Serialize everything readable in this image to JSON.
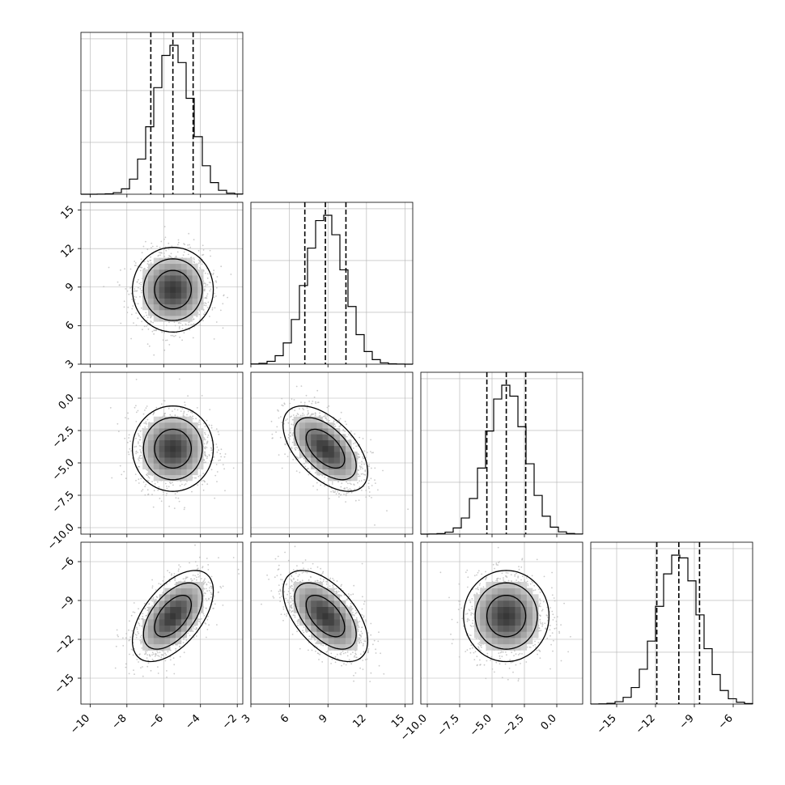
{
  "chart_data": {
    "type": "corner",
    "parameters": [
      {
        "x_ticks": [
          "−10",
          "−8",
          "−6",
          "−4",
          "−2"
        ],
        "x_tick_values": [
          -10,
          -8,
          -6,
          -4,
          -2
        ],
        "range": [
          -10.5,
          -1.7
        ],
        "mean": -5.5,
        "sd": 1.0,
        "quantiles": [
          -6.7,
          -5.5,
          -4.4
        ]
      },
      {
        "x_ticks": [
          "3",
          "6",
          "9",
          "12",
          "15"
        ],
        "x_tick_values": [
          3,
          6,
          9,
          12,
          15
        ],
        "y_ticks": [
          "3",
          "6",
          "9",
          "12",
          "15"
        ],
        "y_tick_values": [
          3,
          6,
          9,
          12,
          15
        ],
        "range": [
          3.0,
          15.6
        ],
        "mean": 8.8,
        "sd": 1.5,
        "quantiles": [
          7.2,
          8.8,
          10.4
        ]
      },
      {
        "x_ticks": [
          "−10.0",
          "−7.5",
          "−5.0",
          "−2.5",
          "0.0"
        ],
        "x_tick_values": [
          -10,
          -7.5,
          -5,
          -2.5,
          0
        ],
        "y_ticks": [
          "−10.0",
          "−7.5",
          "−5.0",
          "−2.5",
          "0.0"
        ],
        "y_tick_values": [
          -10,
          -7.5,
          -5,
          -2.5,
          0
        ],
        "range": [
          -10.5,
          2.0
        ],
        "mean": -3.9,
        "sd": 1.5,
        "quantiles": [
          -5.4,
          -3.9,
          -2.4
        ]
      },
      {
        "x_ticks": [
          "−15",
          "−12",
          "−9",
          "−6"
        ],
        "x_tick_values": [
          -15,
          -12,
          -9,
          -6
        ],
        "y_ticks": [
          "−15",
          "−12",
          "−9",
          "−6"
        ],
        "y_tick_values": [
          -15,
          -12,
          -9,
          -6
        ],
        "range": [
          -17.0,
          -4.5
        ],
        "mean": -10.2,
        "sd": 1.6,
        "quantiles": [
          -11.9,
          -10.2,
          -8.6
        ]
      }
    ],
    "correlations": [
      [
        1.0,
        0.0,
        0.0,
        0.55
      ],
      [
        0.0,
        1.0,
        -0.55,
        -0.55
      ],
      [
        0.0,
        -0.55,
        1.0,
        0.0
      ],
      [
        0.55,
        -0.55,
        0.0,
        1.0
      ]
    ],
    "histogram_bins": 20,
    "contour_levels": 3,
    "show_quantile_lines": true,
    "grid": true,
    "colors": {
      "axes": "#000000",
      "grid": "#b0b0b0",
      "points": "#bdbdbd",
      "contour": "#000000"
    }
  }
}
